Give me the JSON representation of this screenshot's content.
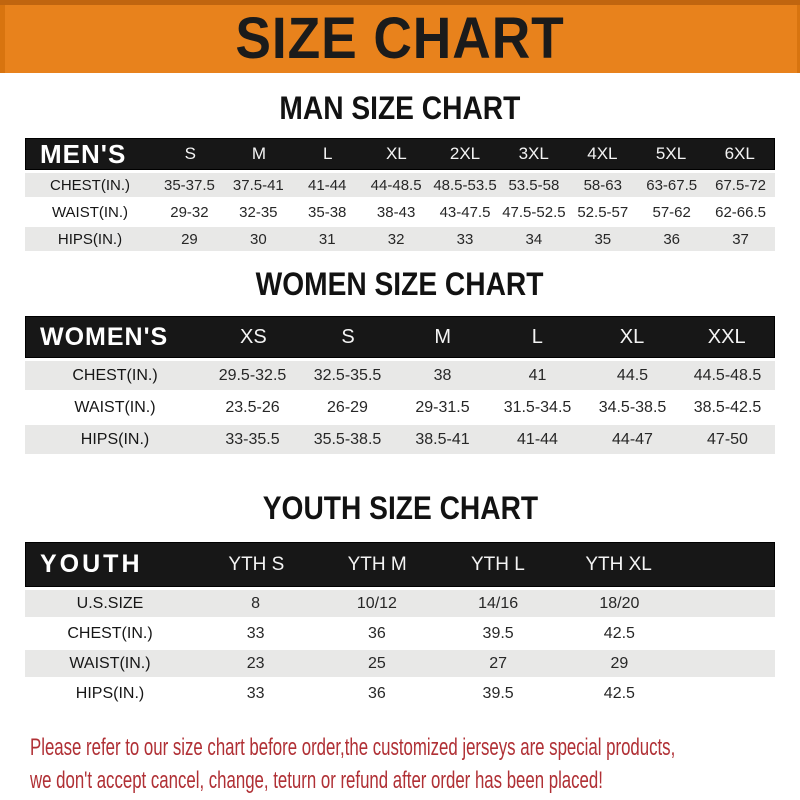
{
  "banner": {
    "title": "SIZE CHART",
    "bg_color": "#E8821C"
  },
  "sections": {
    "man": {
      "title": "MAN SIZE CHART"
    },
    "women": {
      "title": "WOMEN SIZE CHART"
    },
    "youth": {
      "title": "YOUTH SIZE CHART"
    }
  },
  "tables": [
    {
      "id": "men",
      "header_label": "MEN'S",
      "columns": [
        "S",
        "M",
        "L",
        "XL",
        "2XL",
        "3XL",
        "4XL",
        "5XL",
        "6XL"
      ],
      "rows": [
        {
          "label": "CHEST(IN.)",
          "values": [
            "35-37.5",
            "37.5-41",
            "41-44",
            "44-48.5",
            "48.5-53.5",
            "53.5-58",
            "58-63",
            "63-67.5",
            "67.5-72"
          ]
        },
        {
          "label": "WAIST(IN.)",
          "values": [
            "29-32",
            "32-35",
            "35-38",
            "38-43",
            "43-47.5",
            "47.5-52.5",
            "52.5-57",
            "57-62",
            "62-66.5"
          ]
        },
        {
          "label": "HIPS(IN.)",
          "values": [
            "29",
            "30",
            "31",
            "32",
            "33",
            "34",
            "35",
            "36",
            "37"
          ]
        }
      ]
    },
    {
      "id": "women",
      "header_label": "WOMEN'S",
      "columns": [
        "XS",
        "S",
        "M",
        "L",
        "XL",
        "XXL"
      ],
      "rows": [
        {
          "label": "CHEST(IN.)",
          "values": [
            "29.5-32.5",
            "32.5-35.5",
            "38",
            "41",
            "44.5",
            "44.5-48.5"
          ]
        },
        {
          "label": "WAIST(IN.)",
          "values": [
            "23.5-26",
            "26-29",
            "29-31.5",
            "31.5-34.5",
            "34.5-38.5",
            "38.5-42.5"
          ]
        },
        {
          "label": "HIPS(IN.)",
          "values": [
            "33-35.5",
            "35.5-38.5",
            "38.5-41",
            "41-44",
            "44-47",
            "47-50"
          ]
        }
      ]
    },
    {
      "id": "youth",
      "header_label": "YOUTH",
      "columns": [
        "YTH S",
        "YTH M",
        "YTH L",
        "YTH XL"
      ],
      "rows": [
        {
          "label": "U.S.SIZE",
          "values": [
            "8",
            "10/12",
            "14/16",
            "18/20"
          ]
        },
        {
          "label": "CHEST(IN.)",
          "values": [
            "33",
            "36",
            "39.5",
            "42.5"
          ]
        },
        {
          "label": "WAIST(IN.)",
          "values": [
            "23",
            "25",
            "27",
            "29"
          ]
        },
        {
          "label": "HIPS(IN.)",
          "values": [
            "33",
            "36",
            "39.5",
            "42.5"
          ]
        }
      ]
    }
  ],
  "footer": {
    "line1": "Please refer to our size chart before order,the customized jerseys are special products,",
    "line2": "we don't accept cancel, change, teturn or refund after order has been placed!",
    "text_color": "#B03035"
  }
}
